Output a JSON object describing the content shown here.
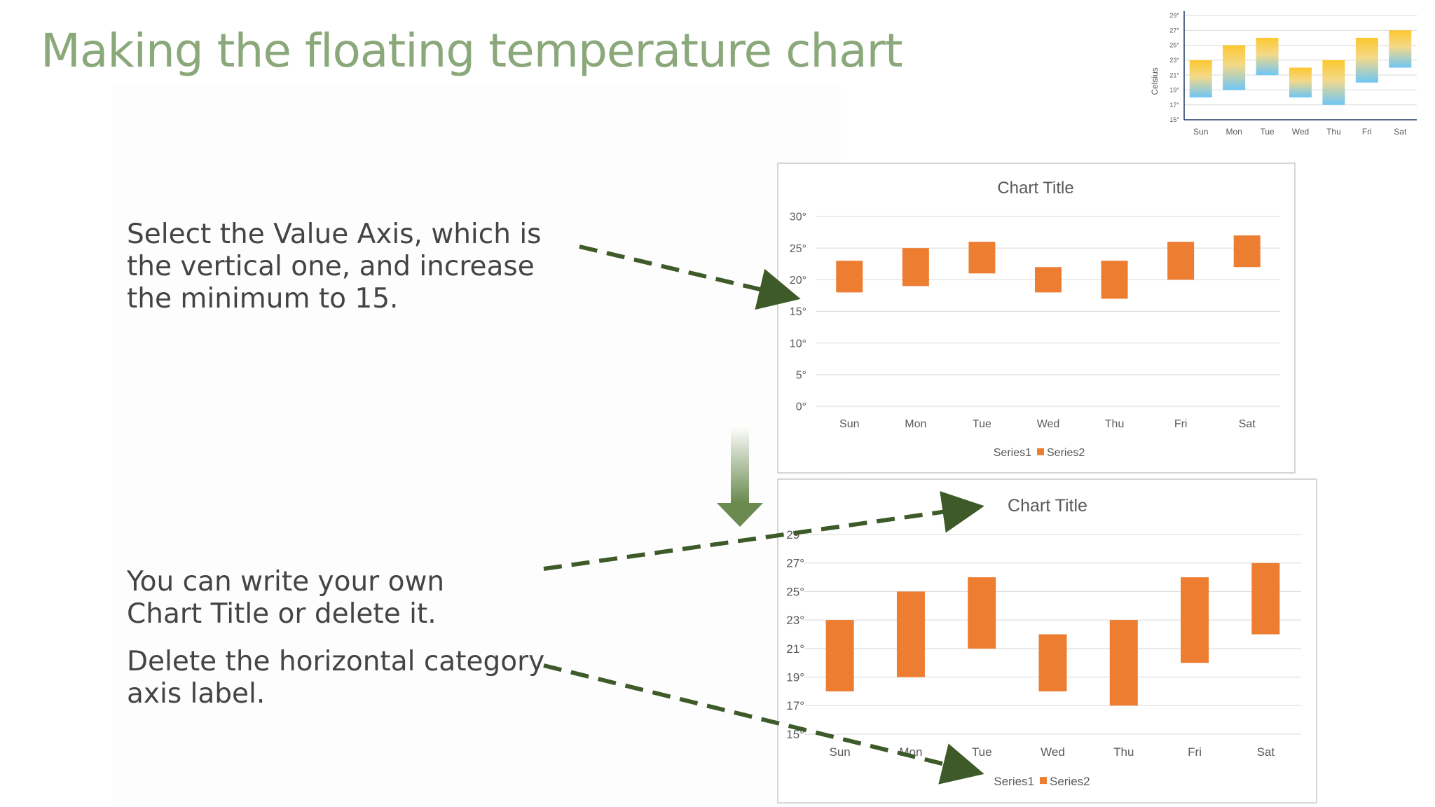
{
  "slide": {
    "title": "Making the floating temperature chart",
    "notes": [
      "Select the Value Axis, which is the vertical one, and increase the minimum to 15.",
      "You can write your own Chart Title or delete it.",
      "Delete the horizontal category axis label."
    ]
  },
  "colors": {
    "title": "#8aa87a",
    "bar": "#ed7d31",
    "arrow": "#3d5a28",
    "grid": "#d9d9d9",
    "thumb_top": "#fdc72f",
    "thumb_bottom": "#72c8f5"
  },
  "chart_data": [
    {
      "id": "thumbnail",
      "type": "bar",
      "title": "",
      "ylabel": "Celsius",
      "ylim": [
        15,
        29
      ],
      "yticks": [
        "15°",
        "17°",
        "19°",
        "21°",
        "23°",
        "25°",
        "27°",
        "29°"
      ],
      "categories": [
        "Sun",
        "Mon",
        "Tue",
        "Wed",
        "Thu",
        "Fri",
        "Sat"
      ],
      "low": [
        18,
        19,
        21,
        18,
        17,
        20,
        22
      ],
      "high": [
        23,
        25,
        26,
        22,
        23,
        26,
        27
      ],
      "grid": true,
      "legend": []
    },
    {
      "id": "top-chart",
      "type": "bar",
      "title": "Chart Title",
      "ylim": [
        0,
        30
      ],
      "yticks": [
        "0°",
        "5°",
        "10°",
        "15°",
        "20°",
        "25°",
        "30°"
      ],
      "categories": [
        "Sun",
        "Mon",
        "Tue",
        "Wed",
        "Thu",
        "Fri",
        "Sat"
      ],
      "low": [
        18,
        19,
        21,
        18,
        17,
        20,
        22
      ],
      "high": [
        23,
        25,
        26,
        22,
        23,
        26,
        27
      ],
      "grid": true,
      "legend": [
        "Series1",
        "Series2"
      ]
    },
    {
      "id": "bottom-chart",
      "type": "bar",
      "title": "Chart Title",
      "ylim": [
        15,
        29
      ],
      "yticks": [
        "15°",
        "17°",
        "19°",
        "21°",
        "23°",
        "25°",
        "27°",
        "29°"
      ],
      "categories": [
        "Sun",
        "Mon",
        "Tue",
        "Wed",
        "Thu",
        "Fri",
        "Sat"
      ],
      "low": [
        18,
        19,
        21,
        18,
        17,
        20,
        22
      ],
      "high": [
        23,
        25,
        26,
        22,
        23,
        26,
        27
      ],
      "grid": true,
      "legend": [
        "Series1",
        "Series2"
      ]
    }
  ]
}
